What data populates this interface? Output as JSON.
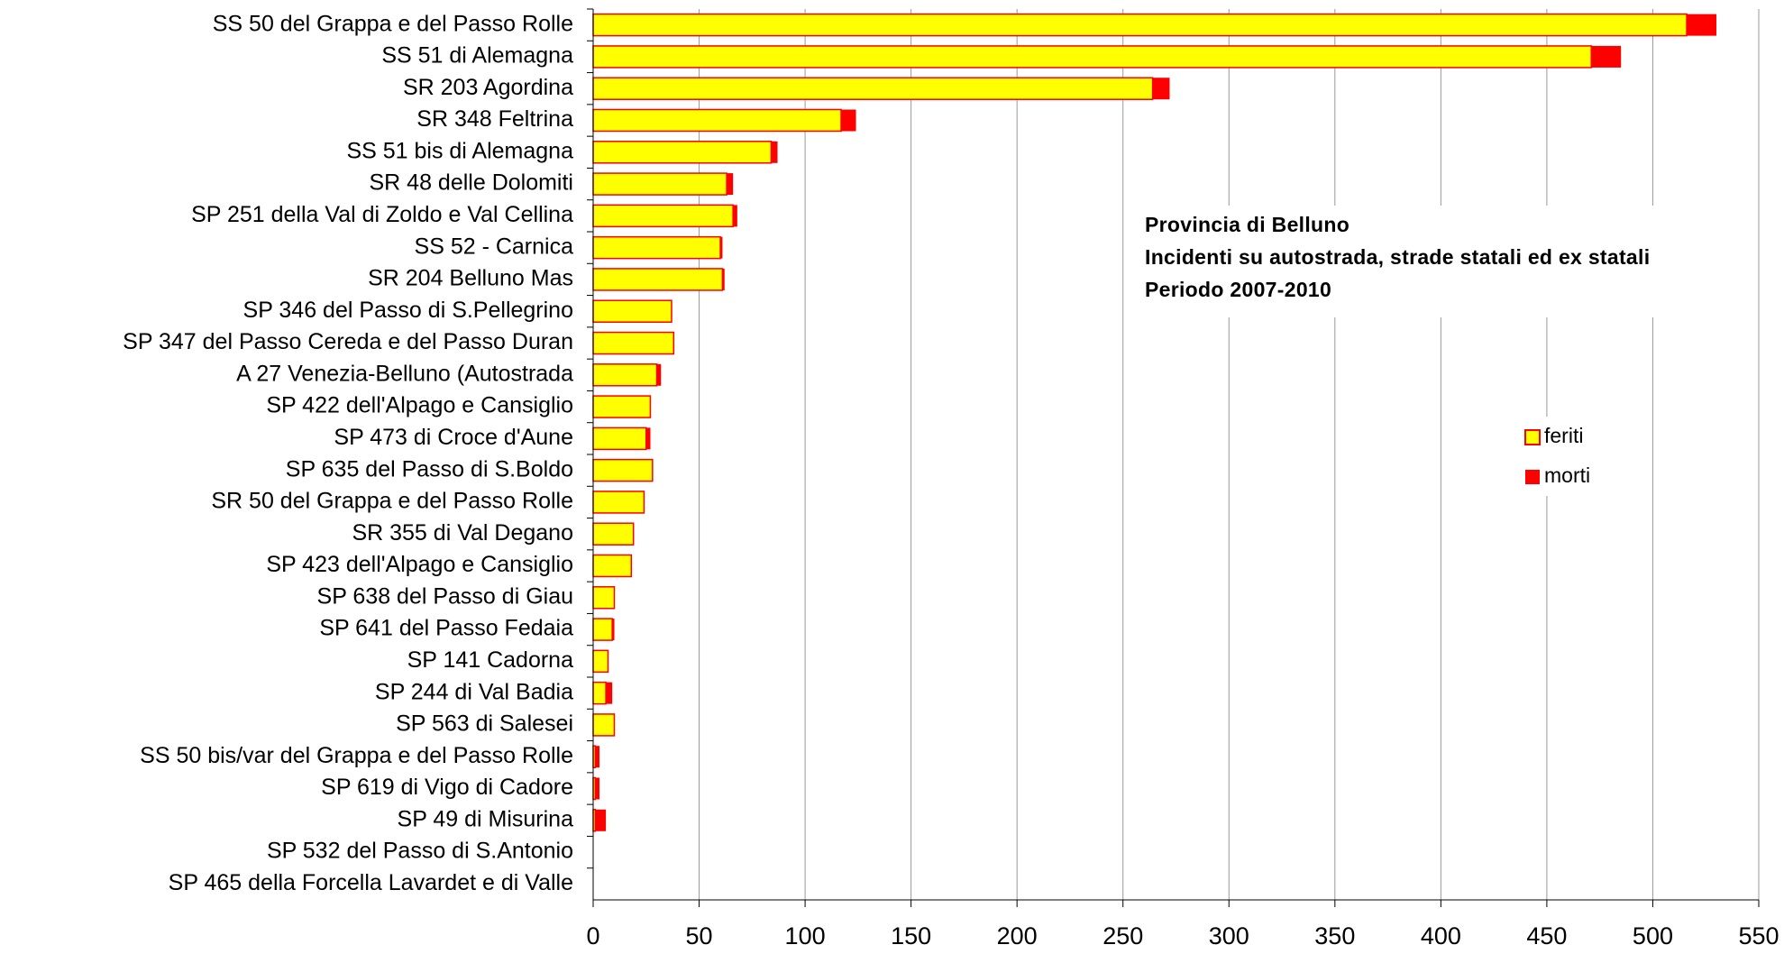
{
  "chart_data": {
    "type": "stacked_bar_horizontal",
    "title": "Provincia di Belluno",
    "subtitle": "Incidenti su autostrada, strade statali ed ex statali",
    "annotations": [
      "Periodo 2007-2010"
    ],
    "categories": [
      "SS 50 del Grappa e del Passo Rolle",
      "SS 51 di Alemagna",
      "SR 203 Agordina",
      "SR 348 Feltrina",
      "SS 51 bis di Alemagna",
      "SR 48 delle Dolomiti",
      "SP 251 della Val di Zoldo e Val Cellina",
      "SS 52 -  Carnica",
      "SR 204 Belluno Mas",
      "SP 346 del Passo di S.Pellegrino",
      "SP 347 del Passo Cereda e del Passo Duran",
      "A 27 Venezia-Belluno (Autostrada",
      "SP 422 dell'Alpago e Cansiglio",
      "SP 473 di Croce d'Aune",
      "SP 635 del Passo di S.Boldo",
      "SR 50 del Grappa e del Passo Rolle",
      "SR 355 di Val Degano",
      "SP 423 dell'Alpago e Cansiglio",
      "SP 638 del Passo di Giau",
      "SP 641 del Passo Fedaia",
      "SP 141 Cadorna",
      "SP 244 di Val Badia",
      "SP 563 di Salesei",
      "SS 50 bis/var del Grappa e del Passo Rolle",
      "SP 619 di Vigo di Cadore",
      "SP 49 di Misurina",
      "SP 532 del Passo di S.Antonio",
      "SP 465 della Forcella Lavardet e di Valle"
    ],
    "series": [
      {
        "name": "feriti",
        "color": "#ffff00",
        "stroke": "#ff0000",
        "values": [
          516,
          471,
          264,
          117,
          84,
          63,
          66,
          60,
          61,
          37,
          38,
          30,
          27,
          25,
          28,
          24,
          19,
          18,
          10,
          9,
          7,
          6,
          10,
          1,
          1,
          1,
          0,
          0
        ]
      },
      {
        "name": "morti",
        "color": "#ff0000",
        "values": [
          14,
          14,
          8,
          7,
          3,
          3,
          2,
          1,
          1,
          0,
          0,
          2,
          0,
          2,
          0,
          0,
          0,
          0,
          0,
          1,
          0,
          3,
          0,
          2,
          2,
          5,
          0,
          0
        ]
      }
    ],
    "xlim": [
      0,
      550
    ],
    "xticks": [
      0,
      50,
      100,
      150,
      200,
      250,
      300,
      350,
      400,
      450,
      500,
      550
    ],
    "grid": true,
    "legend": "right"
  }
}
